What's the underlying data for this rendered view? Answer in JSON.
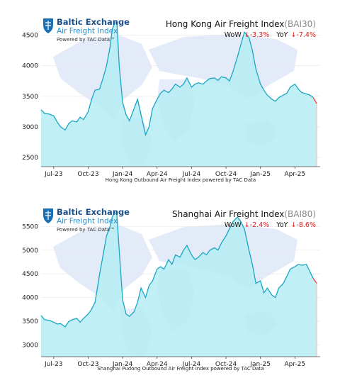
{
  "logo": {
    "line1": "Baltic Exchange",
    "line2": "Air Freight Index",
    "line3": "Powered by TAC Data™"
  },
  "chart_data": [
    {
      "type": "area",
      "title": "Hong Kong Air Freight Index",
      "code": "(BAI30)",
      "wow_label": "WoW",
      "wow_value": "↓-3.3%",
      "yoy_label": "YoY",
      "yoy_value": "↓-7.4%",
      "xlabel": "Hong Kong Outbound Air Freight Index powered by TAC Data",
      "ylim": [
        2350,
        4750
      ],
      "yticks": [
        2500,
        3000,
        3500,
        4000,
        4500
      ],
      "xticks": [
        {
          "label": "Jul-23",
          "t": 1
        },
        {
          "label": "Oct-23",
          "t": 4
        },
        {
          "label": "Jan-24",
          "t": 7
        },
        {
          "label": "Apr-24",
          "t": 10
        },
        {
          "label": "Jul-24",
          "t": 13
        },
        {
          "label": "Oct-24",
          "t": 16
        },
        {
          "label": "Jan-25",
          "t": 19
        },
        {
          "label": "Apr-25",
          "t": 22
        }
      ],
      "xlim": [
        -0.1,
        24.2
      ],
      "colors": {
        "line": "#1aa6c4",
        "fill": "#b5ecf3",
        "last": "#ff4040"
      },
      "t": [
        -0.1,
        0.2,
        0.6,
        1.0,
        1.3,
        1.6,
        2.0,
        2.3,
        2.6,
        3.0,
        3.3,
        3.6,
        4.0,
        4.3,
        4.6,
        5.0,
        5.3,
        5.6,
        5.9,
        6.1,
        6.3,
        6.5,
        6.7,
        7.0,
        7.3,
        7.6,
        8.0,
        8.3,
        8.6,
        9.0,
        9.3,
        9.6,
        10.0,
        10.3,
        10.6,
        11.0,
        11.3,
        11.6,
        12.0,
        12.3,
        12.6,
        13.0,
        13.3,
        13.6,
        14.0,
        14.3,
        14.6,
        15.0,
        15.3,
        15.6,
        16.0,
        16.3,
        16.6,
        17.0,
        17.3,
        17.6,
        18.0,
        18.3,
        18.6,
        19.0,
        19.3,
        19.6,
        20.0,
        20.3,
        20.6,
        21.0,
        21.3,
        21.6,
        22.0,
        22.3,
        22.6,
        23.0,
        23.3,
        23.6,
        23.9
      ],
      "values": [
        3280,
        3220,
        3210,
        3180,
        3080,
        3000,
        2950,
        3050,
        3100,
        3080,
        3160,
        3120,
        3250,
        3450,
        3600,
        3620,
        3800,
        4000,
        4300,
        4600,
        4690,
        4720,
        4000,
        3400,
        3200,
        3100,
        3300,
        3450,
        3200,
        2870,
        3000,
        3300,
        3450,
        3550,
        3600,
        3560,
        3620,
        3700,
        3650,
        3700,
        3800,
        3650,
        3700,
        3720,
        3700,
        3750,
        3790,
        3800,
        3760,
        3820,
        3800,
        3750,
        3900,
        4150,
        4350,
        4550,
        4460,
        4250,
        3950,
        3700,
        3600,
        3520,
        3450,
        3420,
        3480,
        3520,
        3550,
        3650,
        3700,
        3620,
        3560,
        3540,
        3520,
        3480,
        3380
      ]
    },
    {
      "type": "area",
      "title": "Shanghai Air Freight Index",
      "code": "(BAI80)",
      "wow_label": "WoW",
      "wow_value": "↓-2.4%",
      "yoy_label": "YoY",
      "yoy_value": "↓-8.6%",
      "xlabel": "Shanghai Pudong Outbound Air Freight Index powered by TAC Data",
      "ylim": [
        2750,
        5850
      ],
      "yticks": [
        3000,
        3500,
        4000,
        4500,
        5000,
        5500
      ],
      "xticks": [
        {
          "label": "Jul-23",
          "t": 1
        },
        {
          "label": "Oct-23",
          "t": 4
        },
        {
          "label": "Jan-24",
          "t": 7
        },
        {
          "label": "Apr-24",
          "t": 10
        },
        {
          "label": "Jul-24",
          "t": 13
        },
        {
          "label": "Oct-24",
          "t": 16
        },
        {
          "label": "Jan-25",
          "t": 19
        },
        {
          "label": "Apr-25",
          "t": 22
        }
      ],
      "xlim": [
        -0.1,
        24.2
      ],
      "colors": {
        "line": "#1aa6c4",
        "fill": "#b5ecf3",
        "last": "#ff4040"
      },
      "t": [
        -0.1,
        0.2,
        0.6,
        1.0,
        1.3,
        1.6,
        2.0,
        2.3,
        2.6,
        3.0,
        3.3,
        3.6,
        4.0,
        4.3,
        4.6,
        5.0,
        5.3,
        5.6,
        5.9,
        6.1,
        6.3,
        6.5,
        6.7,
        7.0,
        7.3,
        7.6,
        8.0,
        8.3,
        8.6,
        9.0,
        9.3,
        9.6,
        10.0,
        10.3,
        10.6,
        11.0,
        11.3,
        11.6,
        12.0,
        12.3,
        12.6,
        13.0,
        13.3,
        13.6,
        14.0,
        14.3,
        14.6,
        15.0,
        15.3,
        15.6,
        16.0,
        16.3,
        16.6,
        17.0,
        17.3,
        17.6,
        18.0,
        18.3,
        18.6,
        19.0,
        19.3,
        19.6,
        20.0,
        20.3,
        20.6,
        21.0,
        21.3,
        21.6,
        22.0,
        22.3,
        22.6,
        23.0,
        23.3,
        23.6,
        23.9
      ],
      "values": [
        3620,
        3530,
        3520,
        3480,
        3440,
        3450,
        3380,
        3490,
        3530,
        3560,
        3480,
        3560,
        3650,
        3750,
        3900,
        4500,
        4900,
        5300,
        5500,
        5700,
        5800,
        5750,
        5000,
        3950,
        3650,
        3600,
        3700,
        3900,
        4200,
        4000,
        4250,
        4350,
        4600,
        4650,
        4600,
        4800,
        4700,
        4900,
        4850,
        5000,
        5100,
        4900,
        4800,
        4850,
        4950,
        4900,
        5000,
        5050,
        5000,
        5150,
        5300,
        5450,
        5600,
        5700,
        5600,
        5450,
        5000,
        4700,
        4300,
        4350,
        4100,
        4200,
        4050,
        4000,
        4200,
        4300,
        4450,
        4600,
        4650,
        4700,
        4680,
        4700,
        4550,
        4400,
        4300
      ]
    }
  ]
}
